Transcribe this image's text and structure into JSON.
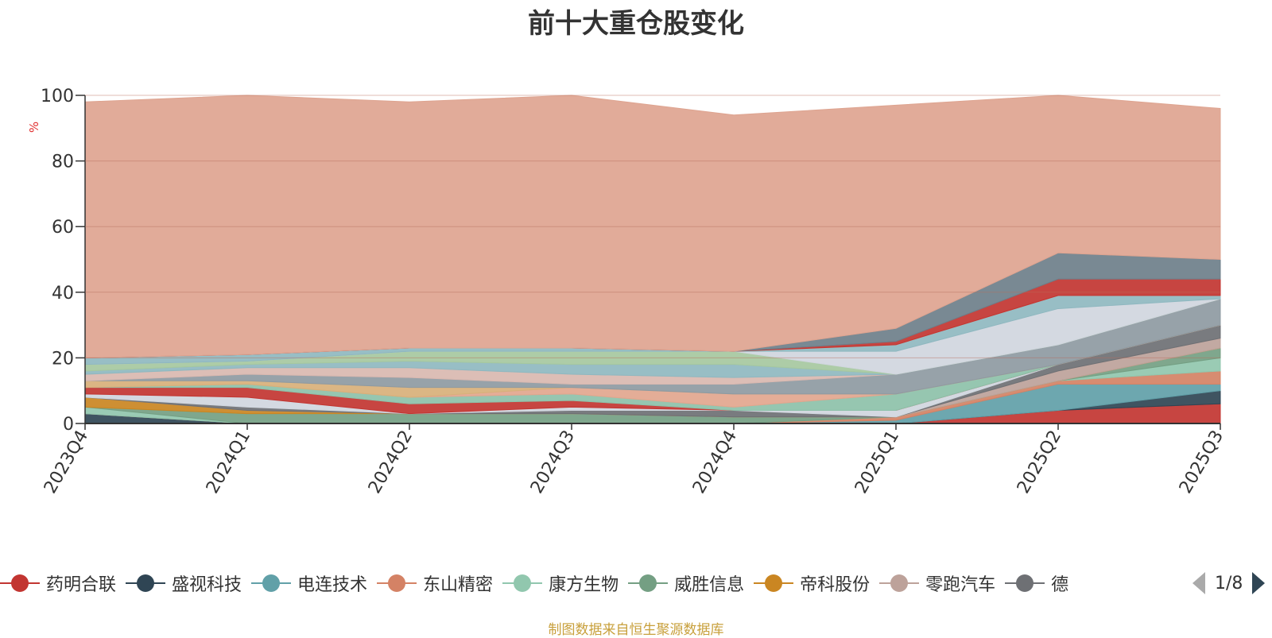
{
  "title": "前十大重仓股变化",
  "source_note": "制图数据来自恒生聚源数据库",
  "pager": {
    "text": "1/8"
  },
  "legend": [
    {
      "label": "药明合联",
      "color": "#c23531"
    },
    {
      "label": "盛视科技",
      "color": "#2f4554"
    },
    {
      "label": "电连技术",
      "color": "#61a0a8"
    },
    {
      "label": "东山精密",
      "color": "#d48265"
    },
    {
      "label": "康方生物",
      "color": "#91c7ae"
    },
    {
      "label": "威胜信息",
      "color": "#749f83"
    },
    {
      "label": "帝科股份",
      "color": "#ca8622"
    },
    {
      "label": "零跑汽车",
      "color": "#bda29a"
    },
    {
      "label": "德",
      "color": "#6e7074"
    }
  ],
  "chart_data": {
    "type": "area",
    "title": "前十大重仓股变化",
    "xlabel": "",
    "ylabel": "%",
    "ylim": [
      0,
      100
    ],
    "yticks": [
      0,
      20,
      40,
      60,
      80,
      100
    ],
    "grid": true,
    "legend_position": "bottom",
    "x": [
      "2023Q4",
      "2024Q1",
      "2024Q2",
      "2024Q3",
      "2024Q4",
      "2025Q1",
      "2025Q2",
      "2025Q3"
    ],
    "series_note": "stacked layers; named series are those shown in legend page 1/8",
    "layers": [
      {
        "name": "药明合联",
        "color": "#c23531",
        "values": [
          0,
          0,
          0,
          0,
          0,
          0,
          4,
          6
        ]
      },
      {
        "name": "盛视科技",
        "color": "#2f4554",
        "values": [
          3,
          0,
          0,
          0,
          0,
          0,
          0,
          4
        ]
      },
      {
        "name": "电连技术",
        "color": "#61a0a8",
        "values": [
          0,
          0,
          0,
          0,
          0,
          1,
          8,
          2
        ]
      },
      {
        "name": "东山精密",
        "color": "#d48265",
        "values": [
          0,
          0,
          0,
          0,
          0,
          1,
          1,
          4
        ]
      },
      {
        "name": "康方生物",
        "color": "#91c7ae",
        "values": [
          2,
          0,
          0,
          0,
          0,
          0,
          0,
          4
        ]
      },
      {
        "name": "威胜信息",
        "color": "#749f83",
        "values": [
          0,
          3,
          3,
          3,
          2,
          0,
          0,
          3
        ]
      },
      {
        "name": "帝科股份",
        "color": "#ca8622",
        "values": [
          3,
          1,
          0,
          0,
          0,
          0,
          0,
          0
        ]
      },
      {
        "name": "零跑汽车",
        "color": "#bda29a",
        "values": [
          0,
          0,
          0,
          0,
          0,
          0,
          3,
          3
        ]
      },
      {
        "name": "德",
        "color": "#6e7074",
        "values": [
          0,
          1,
          0,
          1,
          2,
          0,
          2,
          4
        ]
      },
      {
        "name": "",
        "color": "#d0d6de",
        "values": [
          1,
          3,
          0,
          1,
          0,
          2,
          0,
          0
        ]
      },
      {
        "name": "",
        "color": "#c23531",
        "values": [
          2,
          3,
          3,
          2,
          0,
          0,
          0,
          0
        ]
      },
      {
        "name": "",
        "color": "#8dc1a9",
        "values": [
          0,
          1,
          2,
          2,
          1,
          5,
          0,
          0
        ]
      },
      {
        "name": "",
        "color": "#e2a68e",
        "values": [
          0,
          0,
          0,
          2,
          4,
          0,
          0,
          0
        ]
      },
      {
        "name": "",
        "color": "#d8b07a",
        "values": [
          2,
          1,
          3,
          0,
          0,
          0,
          0,
          0
        ]
      },
      {
        "name": "",
        "color": "#8e9aa2",
        "values": [
          0,
          2,
          3,
          1,
          3,
          6,
          6,
          8
        ]
      },
      {
        "name": "",
        "color": "#d9b8b0",
        "values": [
          2,
          2,
          3,
          3,
          2,
          0,
          0,
          0
        ]
      },
      {
        "name": "",
        "color": "#8fb8c0",
        "values": [
          1,
          1,
          2,
          3,
          4,
          0,
          0,
          0
        ]
      },
      {
        "name": "",
        "color": "#a6c8a0",
        "values": [
          2,
          1,
          3,
          4,
          4,
          0,
          0,
          0
        ]
      },
      {
        "name": "",
        "color": "#d0d6de",
        "values": [
          0,
          0,
          0,
          0,
          0,
          7,
          11,
          0
        ]
      },
      {
        "name": "",
        "color": "#8fb8c0",
        "values": [
          2,
          2,
          1,
          1,
          0,
          2,
          4,
          1
        ]
      },
      {
        "name": "",
        "color": "#e2a68e",
        "values": [
          0,
          0,
          0,
          0,
          0,
          0,
          0,
          0
        ]
      },
      {
        "name": "",
        "color": "#c23531",
        "values": [
          0,
          0,
          0,
          0,
          0,
          1,
          5,
          5
        ]
      },
      {
        "name": "",
        "color": "#6e7f8a",
        "values": [
          0,
          0,
          0,
          0,
          0,
          4,
          8,
          6
        ]
      },
      {
        "name": "",
        "color": "#dea490",
        "values": [
          78,
          79,
          75,
          79,
          72,
          68,
          50,
          46
        ]
      }
    ]
  }
}
